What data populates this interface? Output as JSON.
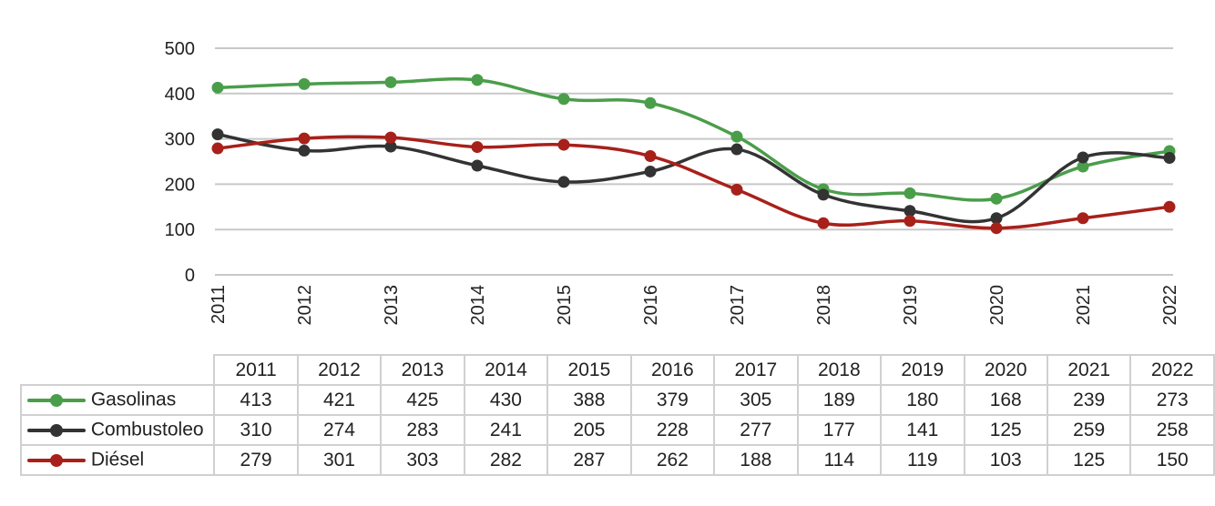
{
  "chart_data": {
    "type": "line",
    "title": "",
    "xlabel": "",
    "ylabel": "",
    "ylim": [
      0,
      500
    ],
    "yticks": [
      0,
      100,
      200,
      300,
      400,
      500
    ],
    "grid": "horizontal",
    "smooth": true,
    "legend_position": "data-table",
    "categories": [
      "2011",
      "2012",
      "2013",
      "2014",
      "2015",
      "2016",
      "2017",
      "2018",
      "2019",
      "2020",
      "2021",
      "2022"
    ],
    "series": [
      {
        "name": "Gasolinas",
        "color": "#4a9e4a",
        "values": [
          413,
          421,
          425,
          430,
          388,
          379,
          305,
          189,
          180,
          168,
          239,
          273
        ]
      },
      {
        "name": "Combustoleo",
        "color": "#333333",
        "values": [
          310,
          274,
          283,
          241,
          205,
          228,
          277,
          177,
          141,
          125,
          259,
          258
        ]
      },
      {
        "name": "Diésel",
        "color": "#a8201a",
        "values": [
          279,
          301,
          303,
          282,
          287,
          262,
          188,
          114,
          119,
          103,
          125,
          150
        ]
      }
    ]
  },
  "table": {
    "headers": [
      "2011",
      "2012",
      "2013",
      "2014",
      "2015",
      "2016",
      "2017",
      "2018",
      "2019",
      "2020",
      "2021",
      "2022"
    ],
    "rows": [
      {
        "label": "Gasolinas",
        "values": [
          "413",
          "421",
          "425",
          "430",
          "388",
          "379",
          "305",
          "189",
          "180",
          "168",
          "239",
          "273"
        ]
      },
      {
        "label": "Combustoleo",
        "values": [
          "310",
          "274",
          "283",
          "241",
          "205",
          "228",
          "277",
          "177",
          "141",
          "125",
          "259",
          "258"
        ]
      },
      {
        "label": "Diésel",
        "values": [
          "279",
          "301",
          "303",
          "282",
          "287",
          "262",
          "188",
          "114",
          "119",
          "103",
          "125",
          "150"
        ]
      }
    ]
  }
}
